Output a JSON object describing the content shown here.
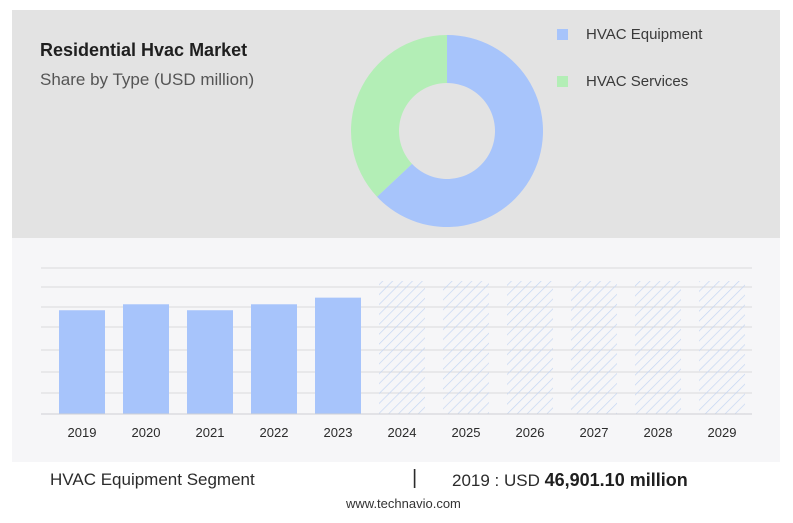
{
  "header": {
    "title": "Residential Hvac Market",
    "subtitle": "Share by Type (USD million)"
  },
  "colors": {
    "equipment": "#a7c4fb",
    "services": "#b3eeb6",
    "forecast_hatch": "#c5d6f2"
  },
  "chart_data": [
    {
      "type": "pie",
      "variant": "donut",
      "title": "",
      "legend_position": "top-right",
      "series": [
        {
          "name": "HVAC Equipment",
          "value": 63
        },
        {
          "name": "HVAC Services",
          "value": 37
        }
      ]
    },
    {
      "type": "bar",
      "title": "",
      "xlabel": "",
      "ylabel": "",
      "grid": true,
      "categories": [
        "2019",
        "2020",
        "2021",
        "2022",
        "2023",
        "2024",
        "2025",
        "2026",
        "2027",
        "2028",
        "2029"
      ],
      "values": [
        46901.1,
        49600,
        46900,
        49600,
        52600,
        null,
        null,
        null,
        null,
        null,
        null
      ],
      "forecast_categories": [
        "2024",
        "2025",
        "2026",
        "2027",
        "2028",
        "2029"
      ],
      "ylim": [
        0,
        66000
      ]
    }
  ],
  "footer": {
    "segment_label": "HVAC Equipment Segment",
    "divider": "|",
    "value_prefix": "2019 : USD",
    "value_amount": "46,901.10 million",
    "source_url": "www.technavio.com"
  }
}
